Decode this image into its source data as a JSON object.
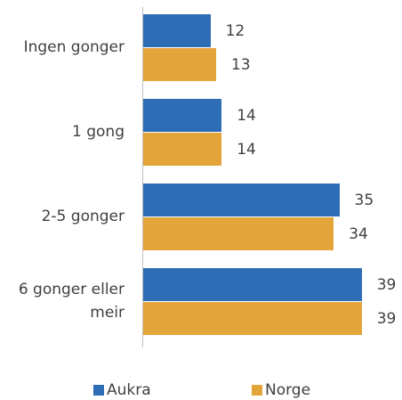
{
  "chart_data": {
    "type": "bar",
    "orientation": "horizontal",
    "categories": [
      "Ingen gonger",
      "1 gong",
      "2-5 gonger",
      "6 gonger eller meir"
    ],
    "series": [
      {
        "name": "Aukra",
        "color": "#2e6cb5",
        "values": [
          12,
          14,
          35,
          39
        ]
      },
      {
        "name": "Norge",
        "color": "#e3a43a",
        "values": [
          13,
          14,
          34,
          39
        ]
      }
    ],
    "legend": "bottom"
  }
}
